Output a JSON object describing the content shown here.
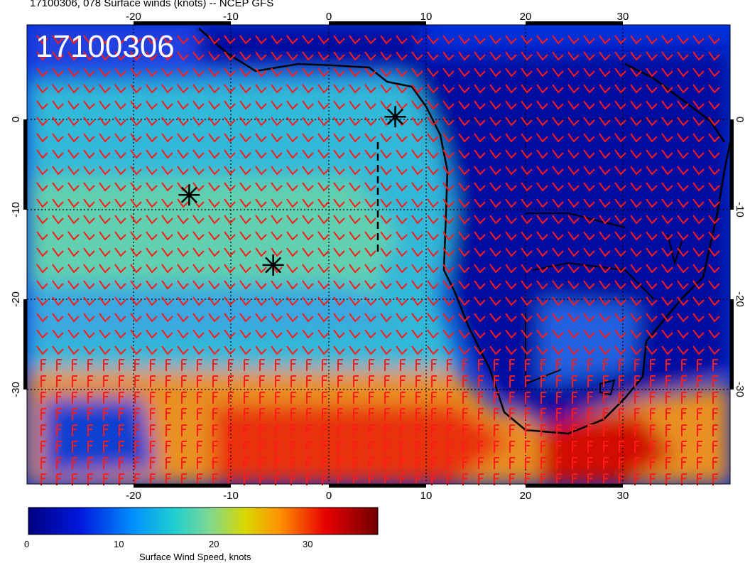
{
  "title": "17100306, 078 Surface winds (knots) -- NCEP GFS",
  "stamp": "17100306",
  "map": {
    "lon_ticks": [
      "-20",
      "-10",
      "0",
      "10",
      "20",
      "30"
    ],
    "lat_ticks": [
      "0",
      "-10",
      "-20",
      "-30"
    ],
    "markers": [
      {
        "name": "marker-1",
        "lon": 6.8,
        "lat": 0.3
      },
      {
        "name": "marker-2",
        "lon": -14.3,
        "lat": -8.4
      },
      {
        "name": "marker-3",
        "lon": -5.7,
        "lat": -16.2
      }
    ]
  },
  "colorbar": {
    "title": "Surface Wind Speed, knots",
    "labels": [
      "0",
      "10",
      "20",
      "30"
    ],
    "colors": [
      "#00007f",
      "#0010d8",
      "#0080ff",
      "#20c8d8",
      "#80d890",
      "#d8d800",
      "#ff8000",
      "#e80000",
      "#800000"
    ]
  },
  "colors": {
    "barb": "#ff1a1a",
    "coast": "#000000"
  }
}
